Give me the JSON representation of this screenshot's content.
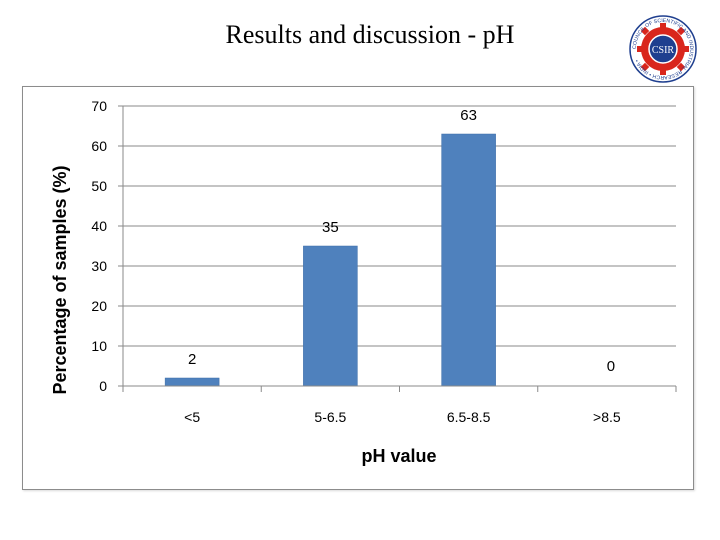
{
  "slide": {
    "title": "Results and discussion - pH",
    "logo_text": "CSIR",
    "logo_ring_text": "COUNCIL OF SCIENTIFIC AND INDUSTRIAL RESEARCH • INDIA •"
  },
  "colors": {
    "bar": "#4f81bd",
    "bar_edge": "#3d6ea8",
    "gridline": "#8a8a8a",
    "logo_red": "#d9261c",
    "logo_blue": "#1f3f8f"
  },
  "chart_data": {
    "type": "bar",
    "categories": [
      "<5",
      "5-6.5",
      "6.5-8.5",
      ">8.5"
    ],
    "values": [
      2,
      35,
      63,
      0
    ],
    "data_labels": [
      "2",
      "35",
      "63",
      "0"
    ],
    "xlabel": "pH value",
    "ylabel": "Percentage of samples (%)",
    "ylim": [
      0,
      70
    ],
    "yticks": [
      0,
      10,
      20,
      30,
      40,
      50,
      60,
      70
    ],
    "grid": true,
    "legend": "none"
  }
}
